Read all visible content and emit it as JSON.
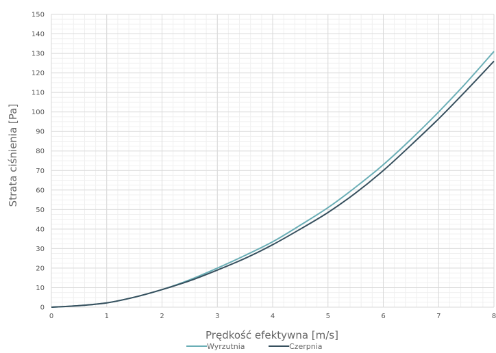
{
  "chart_data": {
    "type": "line",
    "xlabel": "Prędkość efektywna [m/s]",
    "ylabel": "Strata ciśnienia [Pa]",
    "xlim": [
      0,
      8
    ],
    "ylim": [
      0,
      150
    ],
    "x_ticks": [
      0,
      1,
      2,
      3,
      4,
      5,
      6,
      7,
      8
    ],
    "y_ticks": [
      0,
      10,
      20,
      30,
      40,
      50,
      60,
      70,
      80,
      90,
      100,
      110,
      120,
      130,
      140,
      150
    ],
    "x_minor_step": 0.2,
    "y_minor_step": 2.5,
    "grid": true,
    "legend_position": "bottom-center",
    "series": [
      {
        "name": "Wyrzutnia",
        "color": "#6aaeb6",
        "x": [
          0,
          0.5,
          1,
          1.5,
          2,
          2.5,
          3,
          3.5,
          4,
          4.5,
          5,
          5.5,
          6,
          6.5,
          7,
          7.5,
          8
        ],
        "y": [
          0,
          0.8,
          2.2,
          5.1,
          9,
          14,
          20,
          26.5,
          33.5,
          42,
          51,
          61.5,
          73,
          86,
          100,
          115,
          131
        ]
      },
      {
        "name": "Czerpnia",
        "color": "#37505e",
        "x": [
          0,
          0.5,
          1,
          1.5,
          2,
          2.5,
          3,
          3.5,
          4,
          4.5,
          5,
          5.5,
          6,
          6.5,
          7,
          7.5,
          8
        ],
        "y": [
          0,
          0.8,
          2.2,
          5.1,
          9,
          13.5,
          19,
          25,
          32,
          40,
          48.5,
          58.5,
          70,
          83,
          96.5,
          111,
          126
        ]
      }
    ]
  }
}
